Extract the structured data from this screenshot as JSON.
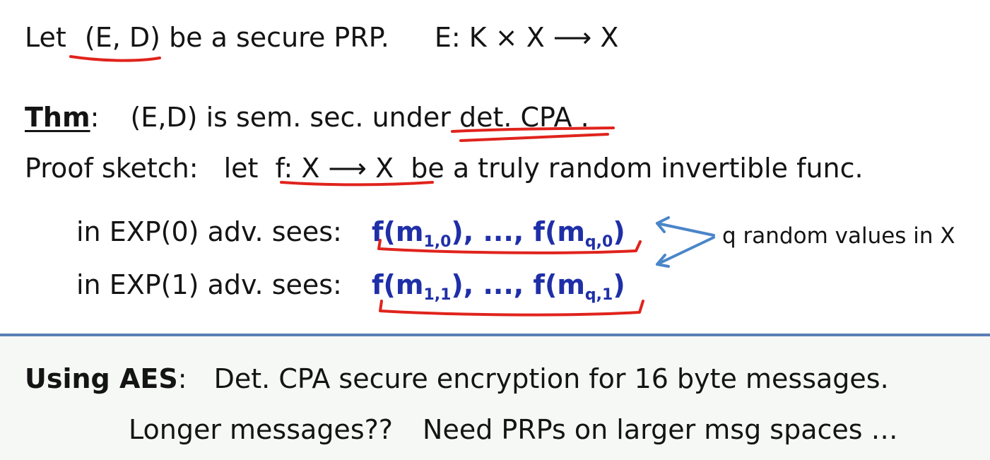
{
  "line1": {
    "let": "Let",
    "scheme": "(E, D)",
    "rest": "be a secure PRP.",
    "signature": "E: K × X ⟶ X"
  },
  "theorem": {
    "label": "Thm",
    "colon": ":",
    "statement_start": "(E,D) is sem. sec. under",
    "statement_marked": "det. CPA ."
  },
  "proof": {
    "label": "Proof sketch:",
    "let": "let",
    "function": "f: X ⟶ X",
    "rest": "be a truly random invertible func."
  },
  "exp0": {
    "prefix": "in  EXP(0)  adv. sees:",
    "v1_pre": "f(m",
    "v1_sub": "1,0",
    "mid": "), ..., f(m",
    "v2_sub": "q,0",
    "end": ")"
  },
  "exp1": {
    "prefix": "in  EXP(1)  adv. sees:",
    "v1_pre": "f(m",
    "v1_sub": "1,1",
    "mid": "), ..., f(m",
    "v2_sub": "q,1",
    "end": ")"
  },
  "side_note": "q random values in X",
  "bottom": {
    "label": "Using AES",
    "colon": ":",
    "text": "Det. CPA secure encryption for 16 byte messages.",
    "line2_a": "Longer messages??",
    "line2_b": "Need PRPs on larger msg spaces …"
  },
  "colors": {
    "annotation_red": "#e0231c",
    "value_blue": "#1f2fa8",
    "arrow_blue": "#4a86c8",
    "divider_blue": "#5a7fb5"
  }
}
